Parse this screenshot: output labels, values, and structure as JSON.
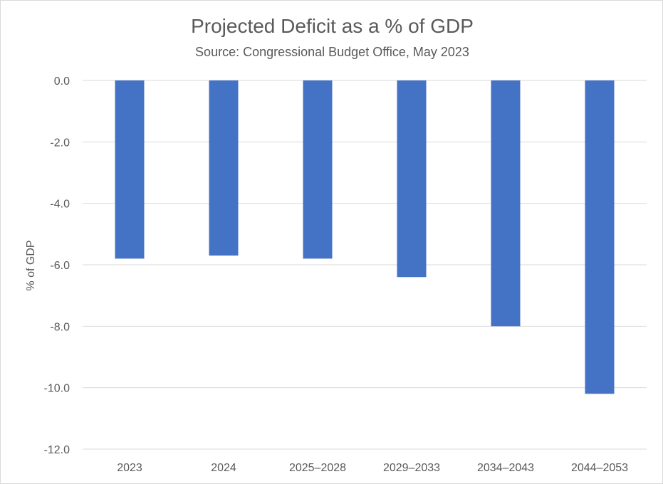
{
  "chart_data": {
    "type": "bar",
    "title": "Projected Deficit as a % of GDP",
    "subtitle": "Source: Congressional Budget Office, May 2023",
    "ylabel": "% of GDP",
    "xlabel": "",
    "categories": [
      "2023",
      "2024",
      "2025–2028",
      "2029–2033",
      "2034–2043",
      "2044–2053"
    ],
    "values": [
      -5.8,
      -5.7,
      -5.8,
      -6.4,
      -8.0,
      -10.2
    ],
    "ylim": [
      -12.0,
      0.0
    ],
    "yticks": [
      "0.0",
      "-2.0",
      "-4.0",
      "-6.0",
      "-8.0",
      "-10.0",
      "-12.0"
    ],
    "grid": true,
    "legend": "none",
    "bar_color": "#4472c4",
    "grid_color": "#d9d9d9"
  }
}
